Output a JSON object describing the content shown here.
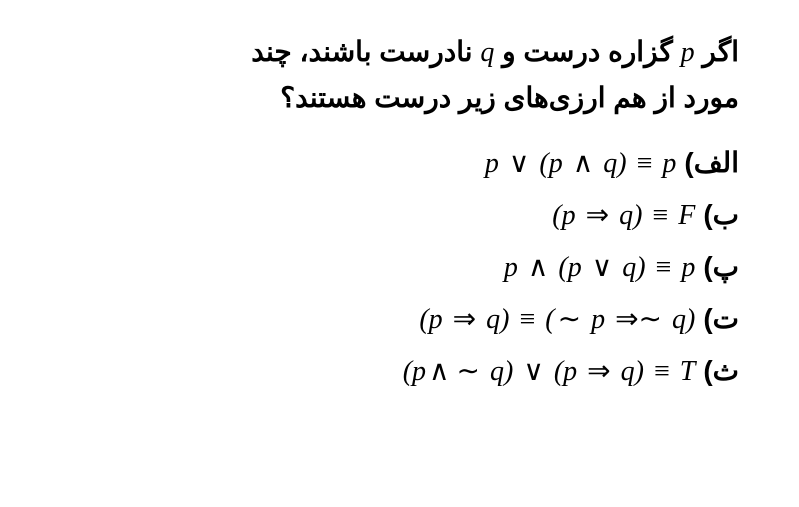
{
  "question": {
    "line1_pre": "اگر ",
    "var_p": "p",
    "line1_mid": " گزاره درست و ",
    "var_q": "q",
    "line1_post": " نادرست باشند، چند",
    "line2": "مورد از هم ارزی‌های زیر درست هستند؟"
  },
  "options": {
    "a": {
      "label": "الف)",
      "formula_html": "<i>p</i> <span class='op'>∨</span> (<i>p</i> <span class='op'>∧</span> <i>q</i>) <span class='op'>≡</span> <i>p</i>"
    },
    "b": {
      "label": "ب)",
      "formula_html": "(<i>p</i> <span class='op'>⇒</span> <i>q</i>) <span class='op'>≡</span> <i>F</i>"
    },
    "c": {
      "label": "پ)",
      "formula_html": "<i>p</i> <span class='op'>∧</span> (<i>p</i> <span class='op'>∨</span> <i>q</i>) <span class='op'>≡</span> <i>p</i>"
    },
    "d": {
      "label": "ت)",
      "formula_html": "(<i>p</i> <span class='op'>⇒</span> <i>q</i>) <span class='op'>≡</span> (<span class='op'>∼</span> <i>p</i> <span class='op'>⇒∼</span> <i>q</i>)"
    },
    "e": {
      "label": "ث)",
      "formula_html": "(<i>p</i><span class='op'>∧ ∼</span> <i>q</i>) <span class='op'>∨</span> (<i>p</i> <span class='op'>⇒</span> <i>q</i>) <span class='op'>≡</span> <i>T</i>"
    }
  }
}
